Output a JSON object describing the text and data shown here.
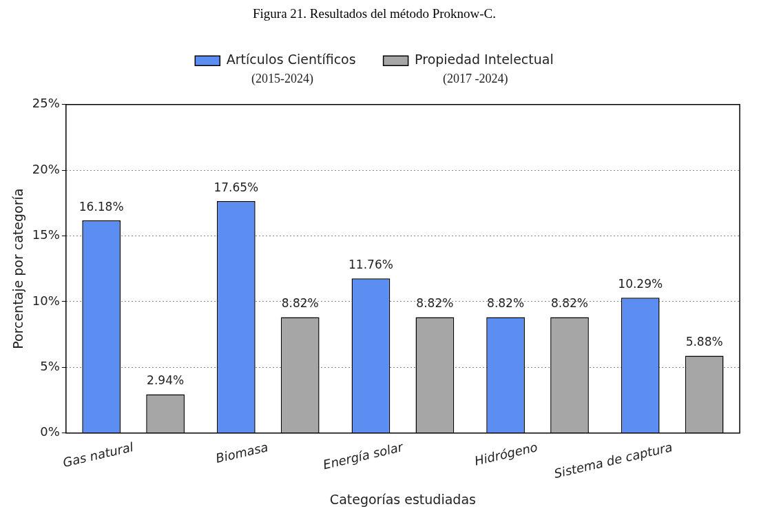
{
  "chart_data": {
    "type": "bar",
    "title": "Figura 21. Resultados del método Proknow-C.",
    "xlabel": "Categorías estudiadas",
    "ylabel": "Porcentaje por categoría",
    "categories": [
      "Gas natural",
      "Biomasa",
      "Energía solar",
      "Hidrógeno",
      "Sistema de captura"
    ],
    "series": [
      {
        "name": "Artículos Científicos",
        "color": "#5b8ef0",
        "values": [
          16.18,
          17.65,
          11.76,
          8.82,
          10.29
        ],
        "value_labels": [
          "16.18%",
          "17.65%",
          "11.76%",
          "8.82%",
          "10.29%"
        ]
      },
      {
        "name": "Propiedad Intelectual",
        "color": "#a6a6a6",
        "values": [
          2.94,
          8.82,
          8.82,
          8.82,
          5.88
        ],
        "value_labels": [
          "2.94%",
          "8.82%",
          "8.82%",
          "8.82%",
          "5.88%"
        ]
      }
    ],
    "annotations": [
      "(2015-2024)",
      "(2017 -2024)"
    ],
    "ylim": [
      0,
      25
    ],
    "yticks": [
      {
        "value": 0,
        "label": "0%"
      },
      {
        "value": 5,
        "label": "5%"
      },
      {
        "value": 10,
        "label": "10%"
      },
      {
        "value": 15,
        "label": "15%"
      },
      {
        "value": 20,
        "label": "20%"
      },
      {
        "value": 25,
        "label": "25%"
      }
    ],
    "grid": "y",
    "legend": "top"
  }
}
